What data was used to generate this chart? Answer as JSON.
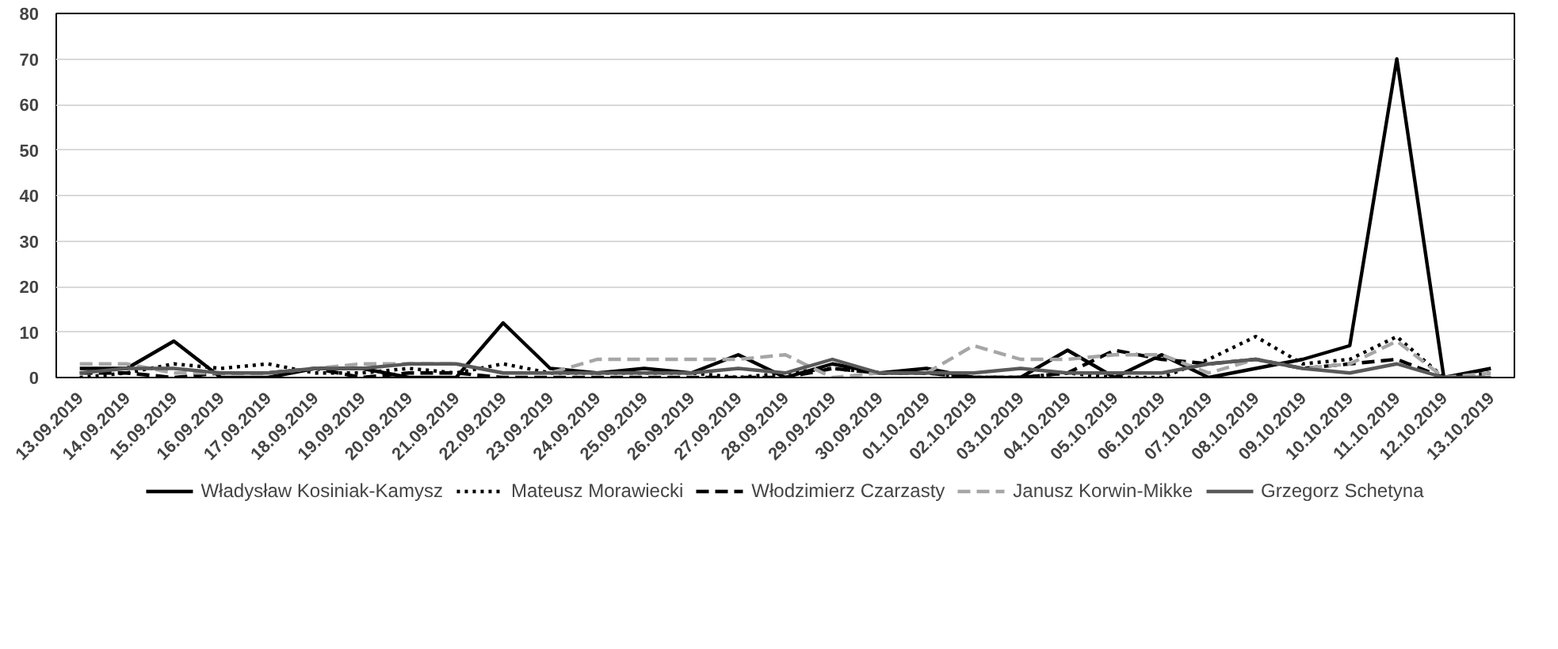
{
  "chart_data": {
    "type": "line",
    "categories": [
      "13.09.2019",
      "14.09.2019",
      "15.09.2019",
      "16.09.2019",
      "17.09.2019",
      "18.09.2019",
      "19.09.2019",
      "20.09.2019",
      "21.09.2019",
      "22.09.2019",
      "23.09.2019",
      "24.09.2019",
      "25.09.2019",
      "26.09.2019",
      "27.09.2019",
      "28.09.2019",
      "29.09.2019",
      "30.09.2019",
      "01.10.2019",
      "02.10.2019",
      "03.10.2019",
      "04.10.2019",
      "05.10.2019",
      "06.10.2019",
      "07.10.2019",
      "08.10.2019",
      "09.10.2019",
      "10.10.2019",
      "11.10.2019",
      "12.10.2019",
      "13.10.2019"
    ],
    "series": [
      {
        "name": "Władysław Kosiniak-Kamysz",
        "color": "#000000",
        "line_style": "solid",
        "values": [
          2,
          2,
          8,
          0,
          0,
          2,
          2,
          0,
          0,
          12,
          2,
          1,
          2,
          1,
          5,
          0,
          3,
          1,
          2,
          0,
          0,
          6,
          0,
          5,
          0,
          2,
          4,
          7,
          70,
          0,
          2
        ]
      },
      {
        "name": "Mateusz Morawiecki",
        "color": "#000000",
        "line_style": "dotted",
        "values": [
          0,
          1,
          3,
          2,
          3,
          1,
          1,
          2,
          1,
          3,
          1,
          1,
          1,
          1,
          0,
          1,
          2,
          1,
          1,
          0,
          0,
          1,
          0,
          0,
          4,
          9,
          3,
          4,
          9,
          0,
          1
        ]
      },
      {
        "name": "Włodzimierz Czarzasty",
        "color": "#000000",
        "line_style": "dashed",
        "values": [
          1,
          1,
          0,
          1,
          1,
          2,
          0,
          1,
          1,
          0,
          0,
          0,
          0,
          0,
          0,
          0,
          2,
          1,
          1,
          0,
          0,
          1,
          6,
          4,
          3,
          4,
          2,
          3,
          4,
          0,
          0
        ]
      },
      {
        "name": "Janusz Korwin-Mikke",
        "color": "#a6a6a6",
        "line_style": "dashed",
        "values": [
          3,
          3,
          1,
          1,
          1,
          2,
          3,
          3,
          3,
          1,
          1,
          4,
          4,
          4,
          4,
          5,
          0,
          1,
          1,
          7,
          4,
          4,
          5,
          5,
          1,
          4,
          2,
          3,
          8,
          0,
          1
        ]
      },
      {
        "name": "Grzegorz Schetyna",
        "color": "#595959",
        "line_style": "solid",
        "values": [
          1,
          2,
          2,
          1,
          1,
          2,
          2,
          3,
          3,
          1,
          1,
          1,
          1,
          1,
          2,
          1,
          4,
          1,
          1,
          1,
          2,
          1,
          1,
          1,
          3,
          4,
          2,
          1,
          3,
          0,
          0
        ]
      }
    ],
    "ylim": [
      0,
      80
    ],
    "yticks": [
      0,
      10,
      20,
      30,
      40,
      50,
      60,
      70,
      80
    ],
    "grid": "y",
    "legend": "bottom",
    "marker": "none"
  }
}
